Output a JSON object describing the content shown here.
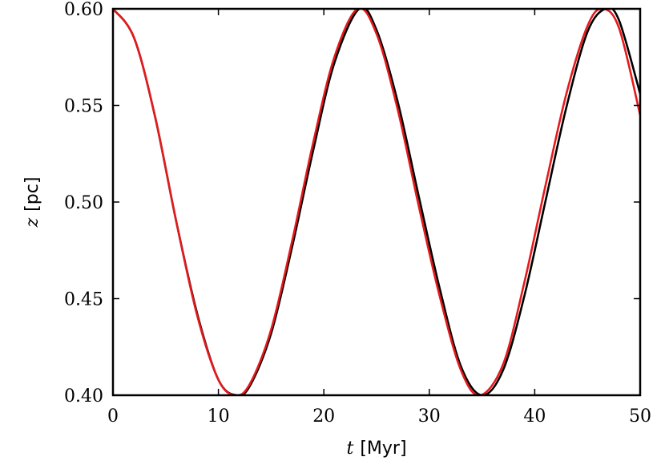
{
  "chart_data": {
    "type": "line",
    "xlabel": {
      "var": "t",
      "unit": "[Myr]"
    },
    "ylabel": {
      "var": "z",
      "unit": "[pc]"
    },
    "xlim": [
      0,
      50
    ],
    "ylim": [
      0.4,
      0.6
    ],
    "xticks": [
      0,
      10,
      20,
      30,
      40,
      50
    ],
    "xtick_labels": [
      "0",
      "10",
      "20",
      "30",
      "40",
      "50"
    ],
    "yticks": [
      0.4,
      0.45,
      0.5,
      0.55,
      0.6
    ],
    "ytick_labels": [
      "0.40",
      "0.45",
      "0.50",
      "0.55",
      "0.60"
    ],
    "grid": false,
    "legend": "none",
    "series": [
      {
        "color": "#000000",
        "x": [
          0,
          2,
          4,
          6,
          8,
          10,
          11.7,
          13,
          15,
          17,
          19,
          21,
          23.35,
          25,
          27,
          29,
          31,
          33,
          35.0,
          37,
          39,
          41,
          43,
          45,
          46.7,
          48,
          50
        ],
        "y": [
          0.6,
          0.585,
          0.544,
          0.49,
          0.442,
          0.408,
          0.4,
          0.405,
          0.432,
          0.477,
          0.527,
          0.572,
          0.6,
          0.589,
          0.552,
          0.503,
          0.455,
          0.415,
          0.4,
          0.413,
          0.451,
          0.5,
          0.549,
          0.588,
          0.6,
          0.594,
          0.556
        ]
      },
      {
        "color": "#e41a1c",
        "x": [
          0,
          2,
          4,
          6,
          8,
          10,
          11.6,
          13,
          15,
          17,
          19,
          21,
          23.2,
          25,
          27,
          29,
          31,
          33,
          34.8,
          37,
          39,
          41,
          43,
          45,
          46.4,
          48,
          50
        ],
        "y": [
          0.6,
          0.585,
          0.544,
          0.49,
          0.441,
          0.408,
          0.4,
          0.406,
          0.434,
          0.48,
          0.531,
          0.575,
          0.6,
          0.587,
          0.548,
          0.498,
          0.451,
          0.413,
          0.4,
          0.416,
          0.458,
          0.508,
          0.556,
          0.591,
          0.6,
          0.59,
          0.545
        ]
      }
    ]
  }
}
